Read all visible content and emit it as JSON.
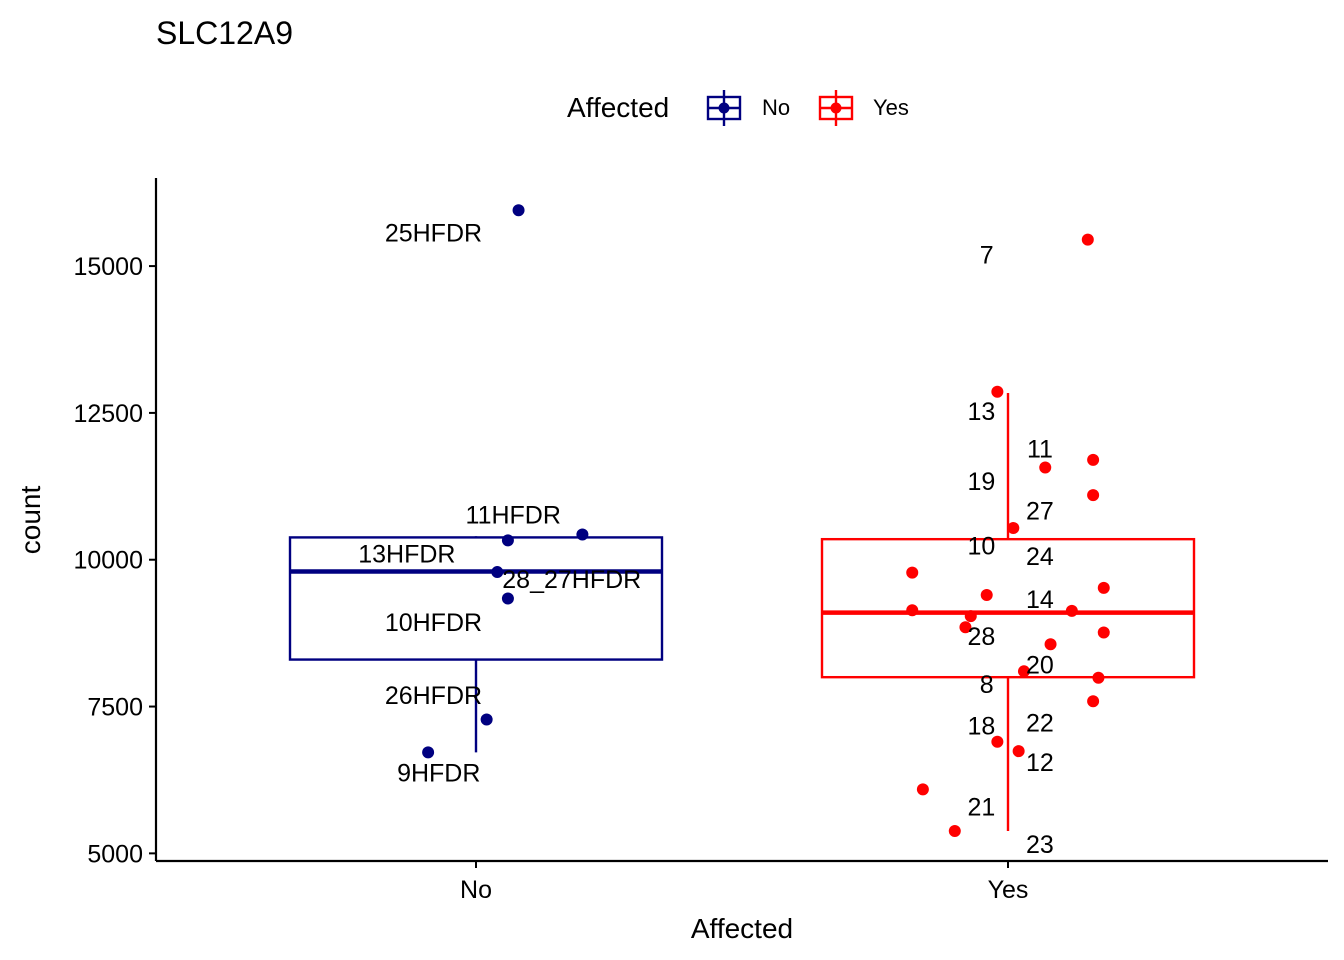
{
  "chart_data": {
    "type": "boxplot",
    "title": "SLC12A9",
    "xlabel": "Affected",
    "ylabel": "count",
    "categories": [
      "No",
      "Yes"
    ],
    "ylim": [
      4870,
      16500
    ],
    "yticks": [
      5000,
      7500,
      10000,
      12500,
      15000
    ],
    "ytick_labels": [
      "5000",
      "7500",
      "10000",
      "12500",
      "15000"
    ],
    "grid": false,
    "legend": {
      "title": "Affected",
      "position": "top",
      "entries": [
        {
          "label": "No",
          "color": "#000080"
        },
        {
          "label": "Yes",
          "color": "#FF0000"
        }
      ]
    },
    "series": [
      {
        "name": "No",
        "color": "#000080",
        "box": {
          "whisker_low": 6720,
          "q1": 8300,
          "median": 9800,
          "q3": 10380,
          "whisker_high": 10400
        },
        "points": [
          {
            "x": 0.08,
            "y": 15950
          },
          {
            "x": 0.2,
            "y": 10430
          },
          {
            "x": 0.06,
            "y": 10330
          },
          {
            "x": 0.04,
            "y": 9790
          },
          {
            "x": 0.06,
            "y": 9340
          },
          {
            "x": 0.02,
            "y": 7280
          },
          {
            "x": -0.09,
            "y": 6720
          }
        ],
        "labels": [
          {
            "text": "25HFDR",
            "x": -0.08,
            "y": 15570
          },
          {
            "text": "11HFDR",
            "x": 0.07,
            "y": 10770
          },
          {
            "text": "13HFDR",
            "x": -0.13,
            "y": 10110
          },
          {
            "text": "28_27HFDR",
            "x": 0.18,
            "y": 9670
          },
          {
            "text": "10HFDR",
            "x": -0.08,
            "y": 8940
          },
          {
            "text": "26HFDR",
            "x": -0.08,
            "y": 7700
          },
          {
            "text": "9HFDR",
            "x": -0.07,
            "y": 6380
          }
        ]
      },
      {
        "name": "Yes",
        "color": "#FF0000",
        "box": {
          "whisker_low": 5380,
          "q1": 8000,
          "median": 9100,
          "q3": 10350,
          "whisker_high": 12840
        },
        "points": [
          {
            "x": 0.15,
            "y": 15450
          },
          {
            "x": -0.02,
            "y": 12860
          },
          {
            "x": 0.07,
            "y": 11570
          },
          {
            "x": 0.16,
            "y": 11700
          },
          {
            "x": 0.16,
            "y": 11100
          },
          {
            "x": 0.01,
            "y": 10540
          },
          {
            "x": -0.18,
            "y": 9780
          },
          {
            "x": 0.18,
            "y": 9520
          },
          {
            "x": -0.04,
            "y": 9400
          },
          {
            "x": -0.18,
            "y": 9140
          },
          {
            "x": -0.07,
            "y": 9040
          },
          {
            "x": 0.12,
            "y": 9130
          },
          {
            "x": -0.08,
            "y": 8850
          },
          {
            "x": 0.18,
            "y": 8760
          },
          {
            "x": 0.08,
            "y": 8560
          },
          {
            "x": 0.03,
            "y": 8100
          },
          {
            "x": 0.17,
            "y": 7990
          },
          {
            "x": 0.16,
            "y": 7590
          },
          {
            "x": -0.02,
            "y": 6900
          },
          {
            "x": 0.02,
            "y": 6740
          },
          {
            "x": -0.16,
            "y": 6090
          },
          {
            "x": -0.1,
            "y": 5380
          }
        ],
        "labels": [
          {
            "text": "7",
            "x": -0.04,
            "y": 15200
          },
          {
            "text": "13",
            "x": -0.05,
            "y": 12530
          },
          {
            "text": "11",
            "x": 0.06,
            "y": 11890
          },
          {
            "text": "19",
            "x": -0.05,
            "y": 11340
          },
          {
            "text": "27",
            "x": 0.06,
            "y": 10840
          },
          {
            "text": "10",
            "x": -0.05,
            "y": 10240
          },
          {
            "text": "24",
            "x": 0.06,
            "y": 10060
          },
          {
            "text": "14",
            "x": 0.06,
            "y": 9330
          },
          {
            "text": "28",
            "x": -0.05,
            "y": 8700
          },
          {
            "text": "20",
            "x": 0.06,
            "y": 8220
          },
          {
            "text": "8",
            "x": -0.04,
            "y": 7880
          },
          {
            "text": "22",
            "x": 0.06,
            "y": 7230
          },
          {
            "text": "18",
            "x": -0.05,
            "y": 7180
          },
          {
            "text": "12",
            "x": 0.06,
            "y": 6560
          },
          {
            "text": "21",
            "x": -0.05,
            "y": 5800
          },
          {
            "text": "23",
            "x": 0.06,
            "y": 5160
          }
        ]
      }
    ]
  }
}
